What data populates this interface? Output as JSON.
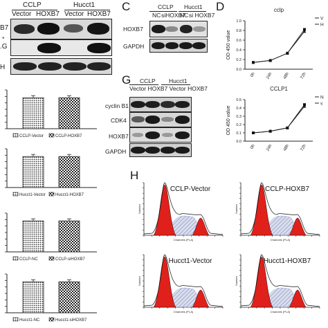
{
  "panels": {
    "c": "C",
    "d": "D",
    "g": "G",
    "h": "H"
  },
  "panel_a_blot": {
    "header_left": "CCLP",
    "header_right": "Hucct1",
    "lanes": [
      "Vector",
      "HOXB7",
      "Vector",
      "HOXB7"
    ],
    "row_labels": [
      "B7",
      "*",
      ".G",
      "H"
    ]
  },
  "panel_c_blot": {
    "header_left": "CCLP",
    "header_right": "Hucct1",
    "lanes": [
      "NC",
      "siHOXB7",
      "NC",
      "si HOXB7"
    ],
    "row_labels": [
      "HOXB7",
      "GAPDH"
    ]
  },
  "panel_g_blot": {
    "header_left": "CCLP",
    "header_right": "Hucct1",
    "lanes_line": "Vector HOXB7 Vector HOXB7",
    "row_labels": [
      "cyclin B1",
      "CDK4",
      "HOXB7",
      "GAPDH"
    ]
  },
  "chart_data": [
    {
      "type": "bar",
      "title": "",
      "categories": [
        "CCLP-Vector",
        "CCLP-HOXB7"
      ],
      "values": [
        1.0,
        1.0
      ]
    },
    {
      "type": "bar",
      "title": "",
      "categories": [
        "Hucct1-Vector",
        "Hucct1-HOXB7"
      ],
      "values": [
        1.0,
        1.0
      ]
    },
    {
      "type": "bar",
      "title": "",
      "categories": [
        "CCLP-NC",
        "CCLP-siHOXB7"
      ],
      "values": [
        1.0,
        1.0
      ]
    },
    {
      "type": "bar",
      "title": "",
      "categories": [
        "Hucct1-NC",
        "Hucct1-siHOXB7"
      ],
      "values": [
        1.0,
        1.0
      ]
    },
    {
      "type": "line",
      "title": "cclp",
      "ylabel": "OD 450 value",
      "x": [
        "0h",
        "24h",
        "48h",
        "72h"
      ],
      "ylim": [
        0,
        1.0
      ],
      "series": [
        {
          "name": "V",
          "values": [
            0.14,
            0.18,
            0.33,
            0.82
          ]
        },
        {
          "name": "H",
          "values": [
            0.14,
            0.18,
            0.33,
            0.78
          ]
        }
      ]
    },
    {
      "type": "line",
      "title": "CCLP1",
      "ylabel": "OD 450 value",
      "x": [
        "0h",
        "24h",
        "48h",
        "72h"
      ],
      "ylim": [
        0,
        0.5
      ],
      "series": [
        {
          "name": "N",
          "values": [
            0.1,
            0.12,
            0.16,
            0.44
          ]
        },
        {
          "name": "s",
          "values": [
            0.1,
            0.12,
            0.16,
            0.42
          ]
        }
      ]
    }
  ],
  "flow": {
    "histograms": [
      {
        "title": "CCLP-Vector",
        "xlabel": "Channels (PI-A)",
        "ylabel": "Number"
      },
      {
        "title": "CCLP-HOXB7",
        "xlabel": "Channels (PI-A)",
        "ylabel": "Number"
      },
      {
        "title": "Hucct1-Vector",
        "xlabel": "Channels (PI-A)",
        "ylabel": "Number"
      },
      {
        "title": "Hucct1-HOXB7",
        "xlabel": "Channels (PI-A)",
        "ylabel": "Number"
      }
    ]
  },
  "colors": {
    "g1_peak": "#e0201b",
    "s_phase": "#a8b4e0",
    "hatch": "#555555"
  }
}
